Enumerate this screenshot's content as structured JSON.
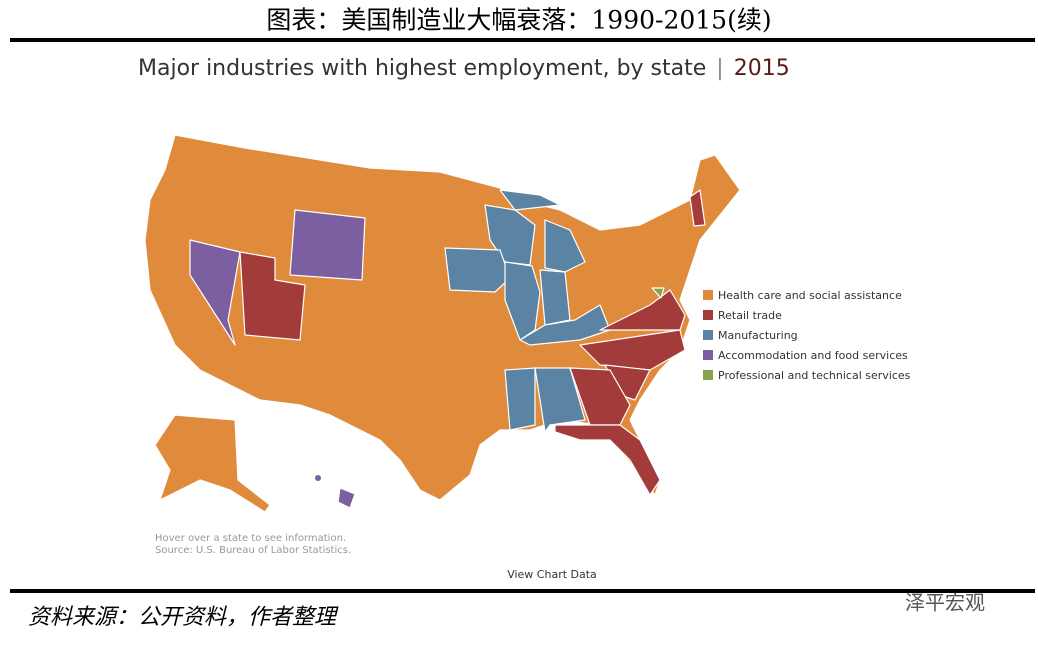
{
  "header": {
    "title": "图表：美国制造业大幅衰落：1990-2015(续)"
  },
  "chart": {
    "title": "Major industries with highest employment, by state",
    "separator": "|",
    "year": "2015",
    "legend": [
      {
        "label": "Health care and social assistance",
        "color": "#e08a3c"
      },
      {
        "label": "Retail trade",
        "color": "#a33b3b"
      },
      {
        "label": "Manufacturing",
        "color": "#5b83a3"
      },
      {
        "label": "Accommodation and food services",
        "color": "#7b5fa0"
      },
      {
        "label": "Professional and technical services",
        "color": "#8aa24e"
      }
    ],
    "notes": [
      "Hover over a state to see information.",
      "Source: U.S. Bureau of Labor Statistics."
    ],
    "link": "View Chart Data"
  },
  "footer": {
    "source": "资料来源：公开资料，作者整理",
    "watermark": "泽平宏观"
  }
}
